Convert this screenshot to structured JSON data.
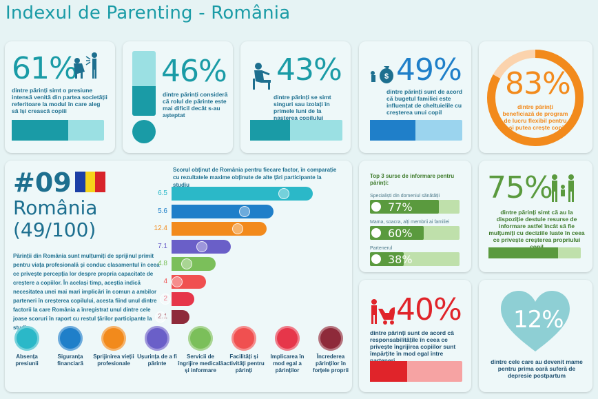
{
  "title": "Indexul de Parenting - România",
  "colors": {
    "teal": "#1a9ba6",
    "darkteal": "#139aa6",
    "blue": "#1f7fc9",
    "orange": "#f28a1c",
    "red": "#e0242a",
    "green": "#5a9a3e",
    "navy": "#1d6f8f"
  },
  "stats": [
    {
      "value": "61%",
      "text": "dintre părinți simt o presiune intensă venită din partea societății referitoare la modul în care aleg să își crească copiii",
      "fill": 0.61
    },
    {
      "value": "46%",
      "text": "dintre părinți consideră că rolul de părinte este mai dificil decât s-au așteptat",
      "fill": 0.46
    },
    {
      "value": "43%",
      "text": "dintre părinți se simt singuri sau izolați în primele luni de la nașterea copilului",
      "fill": 0.43
    },
    {
      "value": "49%",
      "text": "dintre părinți sunt de acord că bugetul familiei este influențat de cheltuielile cu creșterea unui copil",
      "fill": 0.49
    },
    {
      "value": "83%",
      "text": "dintre părinți beneficiază de program de lucru flexibil pentru a-și putea crește copiii",
      "fill": 0.83
    }
  ],
  "ranking": {
    "rank": "#09",
    "country": "România",
    "score": "(49/100)",
    "description": "Părinții din România sunt mulțumiți de sprijinul primit pentru viața profesională și conduc clasamentul în ceea ce privește percepția lor despre propria capacitate de creștere a copiilor. În același timp, aceștia indică necesitatea unei mai mari implicări în comun a ambilor parteneri în creșterea copilului, acesta fiind unul dintre factorii la care România a înregistrat unul dintre cele joase scoruri în raport cu restul țărilor participante la studiu."
  },
  "chart_data": {
    "type": "bar",
    "title": "Scorul obținut de România pentru fiecare factor, în comparație cu rezultatele maxime obținute de alte țări participante la studiu",
    "values": [
      6.5,
      5.6,
      12.4,
      7.1,
      4.8,
      4,
      2,
      2.1
    ],
    "value_labels": [
      "6.5",
      "5.6",
      "12.4",
      "7.1",
      "4.8",
      "4",
      "2",
      "2.1"
    ],
    "fills": [
      0.86,
      0.62,
      0.58,
      0.36,
      0.27,
      0.21,
      0.14,
      0.11
    ],
    "colors": [
      "#2bb8c8",
      "#1f7fc9",
      "#f28a1c",
      "#6a5fc8",
      "#7bbf5a",
      "#f05050",
      "#e6364a",
      "#8e2a3a"
    ],
    "factors": [
      "Absența presiunii",
      "Siguranța financiară",
      "Sprijinirea vieții profesionale",
      "Ușurința de a fi părinte",
      "Servicii de îngrijire medicală și informare",
      "Facilități și activități pentru părinți",
      "Implicarea în mod egal a părinților",
      "Încrederea părinților în forțele proprii"
    ]
  },
  "sources": {
    "title": "Top 3 surse de informare pentru părinți:",
    "items": [
      {
        "label": "Specialiști din domeniul sănătății",
        "value": "77%",
        "fill": 0.77
      },
      {
        "label": "Mama, soacra, alți membrii ai familiei",
        "value": "60%",
        "fill": 0.6
      },
      {
        "label": "Partenerul",
        "value": "38%",
        "fill": 0.38
      }
    ]
  },
  "stat75": {
    "value": "75%",
    "text": "dintre părinți simt că au la dispoziție destule resurse de informare astfel încât să fie mulțumiți cu deciziile luate în ceea ce privește creșterea propriului copil",
    "fill": 0.75
  },
  "stat40": {
    "value": "40%",
    "text": "dintre părinți sunt de acord că responsabilitățile în ceea ce privește îngrijirea copiilor sunt împărțite în mod egal între parteneri",
    "fill": 0.4
  },
  "stat12": {
    "value": "12%",
    "text": "dintre cele care au devenit mame pentru prima oară suferă de depresie postpartum"
  }
}
